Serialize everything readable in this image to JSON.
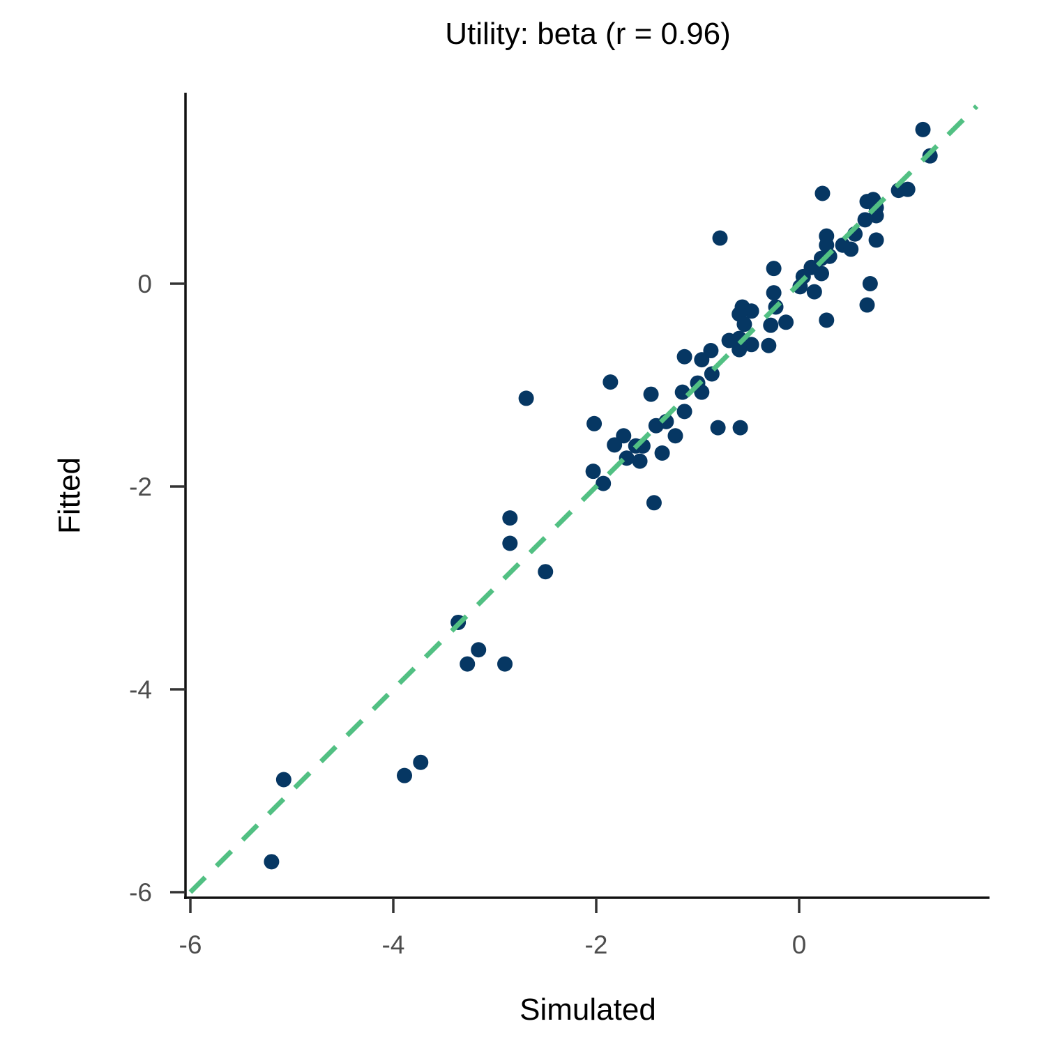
{
  "chart_data": {
    "type": "scatter",
    "title": "Utility: beta (r = 0.96)",
    "xlabel": "Simulated",
    "ylabel": "Fitted",
    "xlim": [
      -6.06,
      1.87
    ],
    "ylim": [
      -6.06,
      1.87
    ],
    "xticks": [
      -6,
      -4,
      -2,
      0
    ],
    "yticks": [
      -6,
      -4,
      -2,
      0
    ],
    "grid": false,
    "reference_line": {
      "type": "identity",
      "style": "dashed",
      "color": "#52c083"
    },
    "point_color": "#063763",
    "points": [
      [
        1.22,
        1.52
      ],
      [
        1.29,
        1.26
      ],
      [
        0.23,
        0.89
      ],
      [
        0.98,
        0.92
      ],
      [
        1.07,
        0.93
      ],
      [
        0.73,
        0.83
      ],
      [
        0.67,
        0.81
      ],
      [
        0.76,
        0.75
      ],
      [
        0.76,
        0.67
      ],
      [
        0.65,
        0.63
      ],
      [
        0.55,
        0.49
      ],
      [
        0.27,
        0.47
      ],
      [
        0.76,
        0.43
      ],
      [
        0.43,
        0.38
      ],
      [
        0.51,
        0.34
      ],
      [
        0.3,
        0.27
      ],
      [
        0.22,
        0.25
      ],
      [
        0.27,
        0.38
      ],
      [
        -0.78,
        0.45
      ],
      [
        -0.25,
        0.15
      ],
      [
        0.12,
        0.16
      ],
      [
        0.22,
        0.1
      ],
      [
        0.04,
        0.07
      ],
      [
        0.01,
        -0.03
      ],
      [
        0.7,
        0.0
      ],
      [
        0.15,
        -0.08
      ],
      [
        -0.25,
        -0.09
      ],
      [
        -0.23,
        -0.23
      ],
      [
        0.67,
        -0.21
      ],
      [
        0.27,
        -0.36
      ],
      [
        -0.56,
        -0.23
      ],
      [
        -0.47,
        -0.27
      ],
      [
        -0.59,
        -0.3
      ],
      [
        -0.54,
        -0.4
      ],
      [
        -0.28,
        -0.41
      ],
      [
        -0.13,
        -0.38
      ],
      [
        -0.69,
        -0.56
      ],
      [
        -0.59,
        -0.54
      ],
      [
        -0.47,
        -0.6
      ],
      [
        -0.59,
        -0.65
      ],
      [
        -0.3,
        -0.61
      ],
      [
        -0.87,
        -0.66
      ],
      [
        -1.13,
        -0.72
      ],
      [
        -0.96,
        -0.75
      ],
      [
        -0.86,
        -0.89
      ],
      [
        -1.0,
        -0.98
      ],
      [
        -0.96,
        -1.07
      ],
      [
        -1.15,
        -1.07
      ],
      [
        -1.86,
        -0.97
      ],
      [
        -1.46,
        -1.09
      ],
      [
        -2.69,
        -1.13
      ],
      [
        -1.13,
        -1.26
      ],
      [
        -1.31,
        -1.36
      ],
      [
        -1.41,
        -1.4
      ],
      [
        -2.02,
        -1.38
      ],
      [
        -0.8,
        -1.42
      ],
      [
        -0.58,
        -1.42
      ],
      [
        -1.22,
        -1.5
      ],
      [
        -1.73,
        -1.5
      ],
      [
        -1.82,
        -1.59
      ],
      [
        -1.61,
        -1.6
      ],
      [
        -1.54,
        -1.6
      ],
      [
        -1.35,
        -1.67
      ],
      [
        -1.7,
        -1.72
      ],
      [
        -1.57,
        -1.75
      ],
      [
        -2.03,
        -1.85
      ],
      [
        -1.93,
        -1.97
      ],
      [
        -1.43,
        -2.16
      ],
      [
        -2.85,
        -2.31
      ],
      [
        -2.85,
        -2.56
      ],
      [
        -2.5,
        -2.84
      ],
      [
        -3.36,
        -3.34
      ],
      [
        -3.16,
        -3.61
      ],
      [
        -3.27,
        -3.75
      ],
      [
        -2.9,
        -3.75
      ],
      [
        -3.73,
        -4.72
      ],
      [
        -3.89,
        -4.85
      ],
      [
        -5.08,
        -4.89
      ],
      [
        -5.2,
        -5.7
      ]
    ]
  }
}
